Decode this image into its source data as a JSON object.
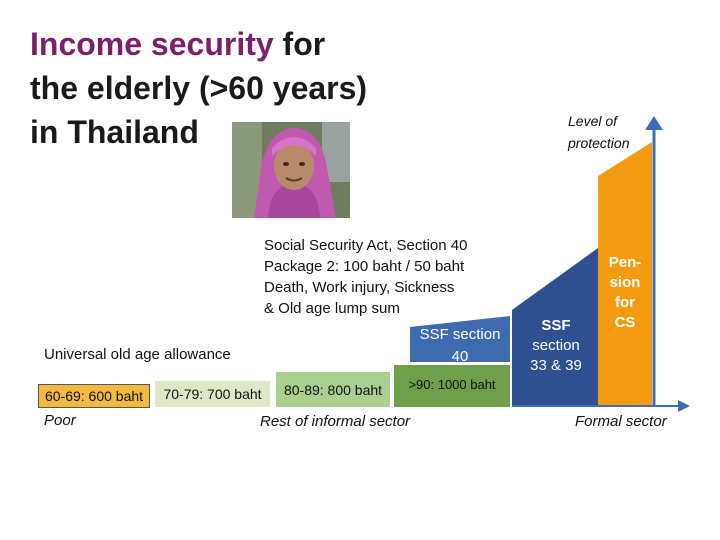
{
  "title": {
    "highlight": "Income security",
    "rest_line1": " for",
    "line2": "the elderly (>60 years)",
    "line3": "in Thailand"
  },
  "photo": {
    "icon": "elderly-woman-portrait",
    "colors": {
      "headscarf": "#c05ab0",
      "skin": "#b98a6a"
    }
  },
  "social_security": {
    "lines": [
      "Social Security Act, Section 40",
      "Package 2: 100 baht / 50 baht",
      "Death, Work injury, Sickness",
      "& Old age lump sum"
    ]
  },
  "universal_label": "Universal old age allowance",
  "allowance_boxes": [
    {
      "label": "60-69: 600 baht",
      "color": "#f4b93f"
    },
    {
      "label": "70-79: 700 baht",
      "color": "#dde8c6"
    },
    {
      "label": "80-89: 800 baht",
      "color": "#a9d08e"
    },
    {
      "label": ">90: 1000 baht",
      "color": "#6f9f4a"
    }
  ],
  "ssf40": {
    "line1": "SSF section",
    "line2": "40",
    "color": "#3e6ab0"
  },
  "ssf33": {
    "line1": "SSF",
    "line2": "section",
    "line3": "33 & 39",
    "color": "#2e5090"
  },
  "pension": {
    "lines": [
      "Pen-",
      "sion",
      "for",
      "CS"
    ],
    "color": "#f39c12"
  },
  "axis": {
    "y_label_line1": "Level of",
    "y_label_line2": "protection",
    "x_labels": {
      "left": "Poor",
      "middle": "Rest of informal sector",
      "right": "Formal sector"
    },
    "color": "#3f6db3"
  }
}
